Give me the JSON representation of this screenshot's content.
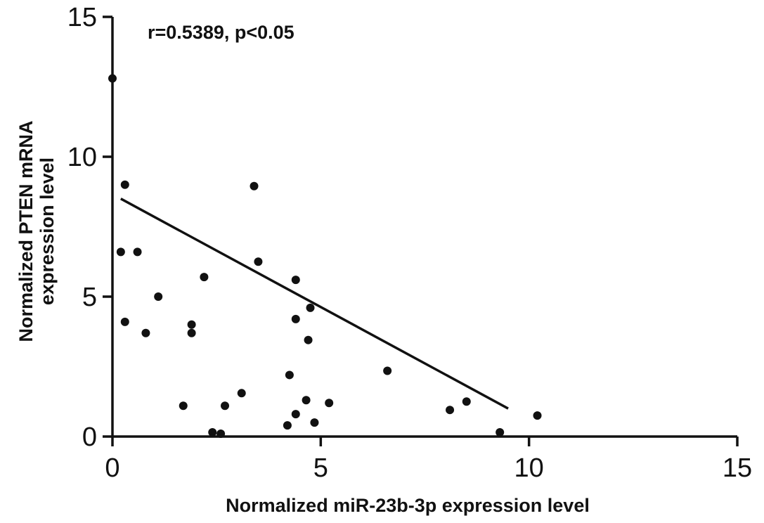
{
  "chart_data": {
    "type": "scatter",
    "title": "",
    "annotation": "r=0.5389, p<0.05",
    "xlabel": "Normalized miR-23b-3p expression level",
    "ylabel_lines": [
      "Normalized PTEN mRNA",
      "expression level"
    ],
    "xlim": [
      0,
      15
    ],
    "ylim": [
      0,
      15
    ],
    "xticks": [
      0,
      5,
      10,
      15
    ],
    "yticks": [
      0,
      5,
      10,
      15
    ],
    "grid": false,
    "legend": "none",
    "point_color": "#111111",
    "points": [
      {
        "x": 0.0,
        "y": 12.8
      },
      {
        "x": 0.2,
        "y": 6.6
      },
      {
        "x": 0.3,
        "y": 9.0
      },
      {
        "x": 0.3,
        "y": 4.1
      },
      {
        "x": 0.6,
        "y": 6.6
      },
      {
        "x": 0.8,
        "y": 3.7
      },
      {
        "x": 1.1,
        "y": 5.0
      },
      {
        "x": 1.7,
        "y": 1.1
      },
      {
        "x": 1.9,
        "y": 4.0
      },
      {
        "x": 1.9,
        "y": 3.7
      },
      {
        "x": 2.2,
        "y": 5.7
      },
      {
        "x": 2.4,
        "y": 0.15
      },
      {
        "x": 2.6,
        "y": 0.1
      },
      {
        "x": 2.7,
        "y": 1.1
      },
      {
        "x": 3.1,
        "y": 1.55
      },
      {
        "x": 3.4,
        "y": 8.95
      },
      {
        "x": 3.5,
        "y": 6.25
      },
      {
        "x": 4.2,
        "y": 0.4
      },
      {
        "x": 4.25,
        "y": 2.2
      },
      {
        "x": 4.4,
        "y": 4.2
      },
      {
        "x": 4.4,
        "y": 5.6
      },
      {
        "x": 4.4,
        "y": 0.8
      },
      {
        "x": 4.65,
        "y": 1.3
      },
      {
        "x": 4.7,
        "y": 3.45
      },
      {
        "x": 4.75,
        "y": 4.6
      },
      {
        "x": 4.85,
        "y": 0.5
      },
      {
        "x": 5.2,
        "y": 1.2
      },
      {
        "x": 6.6,
        "y": 2.35
      },
      {
        "x": 8.1,
        "y": 0.95
      },
      {
        "x": 8.5,
        "y": 1.25
      },
      {
        "x": 9.3,
        "y": 0.15
      },
      {
        "x": 10.2,
        "y": 0.75
      }
    ],
    "fit_line": {
      "x": [
        0.2,
        9.5
      ],
      "y": [
        8.5,
        1.0
      ]
    }
  }
}
